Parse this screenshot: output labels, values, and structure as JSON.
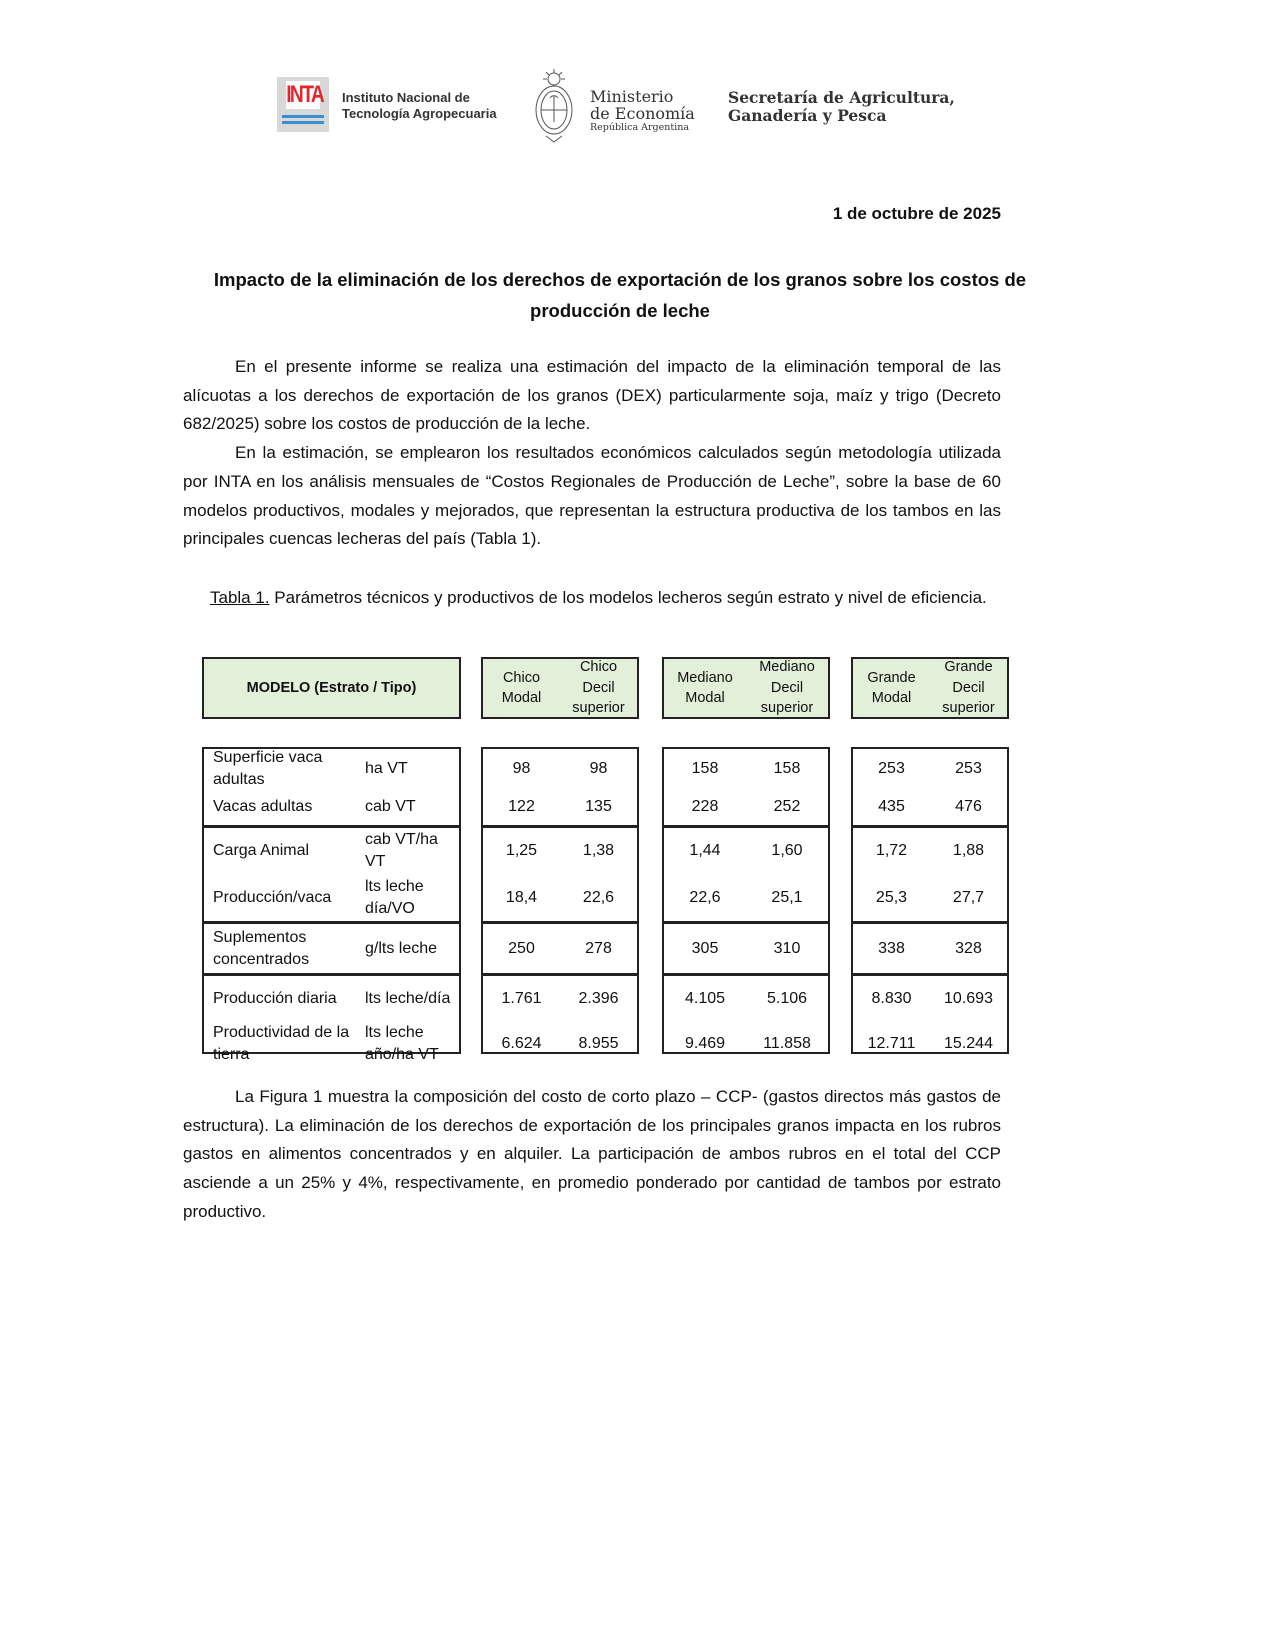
{
  "header": {
    "inta_logo_text": "INTA",
    "inta_name": [
      "Instituto Nacional de",
      "Tecnología Agropecuaria"
    ],
    "ministry_name": [
      "Ministerio",
      "de Economía"
    ],
    "ministry_sub": "República Argentina",
    "secretariat_name": [
      "Secretaría de Agricultura,",
      "Ganadería y Pesca"
    ]
  },
  "date": "1 de octubre de 2025",
  "title": "Impacto de la eliminación de los derechos de exportación de los granos sobre los costos de producción de leche",
  "paragraphs": [
    "En el presente informe se realiza una estimación del impacto de la eliminación temporal de las alícuotas a los derechos de exportación de los granos (DEX) particularmente soja, maíz y trigo (Decreto 682/2025) sobre los costos de producción de la leche.",
    "En la estimación, se emplearon los resultados económicos calculados según metodología utilizada por INTA en los análisis mensuales de “Costos Regionales de Producción de Leche”, sobre la base de 60 modelos productivos, modales y mejorados, que representan la estructura productiva de los tambos en las principales cuencas lecheras del país (Tabla 1)."
  ],
  "table": {
    "caption_label": "Tabla 1.",
    "caption_text": " Parámetros técnicos y productivos de los modelos lecheros según estrato y nivel de eficiencia.",
    "model_header": "MODELO (Estrato / Tipo)",
    "columns": [
      [
        "Chico",
        "Modal"
      ],
      [
        "Chico",
        "Decil",
        "superior"
      ],
      [
        "Mediano",
        "Modal"
      ],
      [
        "Mediano",
        "Decil",
        "superior"
      ],
      [
        "Grande",
        "Modal"
      ],
      [
        "Grande",
        "Decil",
        "superior"
      ]
    ],
    "groups": [
      [
        {
          "label": "Superficie vaca adultas",
          "unit": "ha VT",
          "values": [
            "98",
            "98",
            "158",
            "158",
            "253",
            "253"
          ]
        },
        {
          "label": "Vacas adultas",
          "unit": "cab VT",
          "values": [
            "122",
            "135",
            "228",
            "252",
            "435",
            "476"
          ]
        }
      ],
      [
        {
          "label": "Carga Animal",
          "unit": "cab VT/ha VT",
          "values": [
            "1,25",
            "1,38",
            "1,44",
            "1,60",
            "1,72",
            "1,88"
          ]
        },
        {
          "label": "Producción/vaca",
          "unit": "lts leche día/VO",
          "values": [
            "18,4",
            "22,6",
            "22,6",
            "25,1",
            "25,3",
            "27,7"
          ]
        }
      ],
      [
        {
          "label": "Suplementos concentrados",
          "unit": "g/lts leche",
          "values": [
            "250",
            "278",
            "305",
            "310",
            "338",
            "328"
          ]
        }
      ],
      [
        {
          "label": "Producción diaria",
          "unit": "lts leche/día",
          "values": [
            "1.761",
            "2.396",
            "4.105",
            "5.106",
            "8.830",
            "10.693"
          ]
        },
        {
          "label": "Productividad de la tierra",
          "unit": "lts leche año/ha VT",
          "values": [
            "6.624",
            "8.955",
            "9.469",
            "11.858",
            "12.711",
            "15.244"
          ]
        }
      ]
    ],
    "header_fill": "#e2efd9"
  },
  "closing_paragraph": "La Figura 1 muestra la composición del costo de corto plazo – CCP- (gastos directos más gastos de estructura).  La eliminación de los derechos de exportación de los principales granos impacta en los rubros gastos en alimentos concentrados y en alquiler. La participación de ambos rubros en el total del CCP asciende a un 25% y 4%, respectivamente, en promedio ponderado por cantidad de tambos por estrato productivo."
}
